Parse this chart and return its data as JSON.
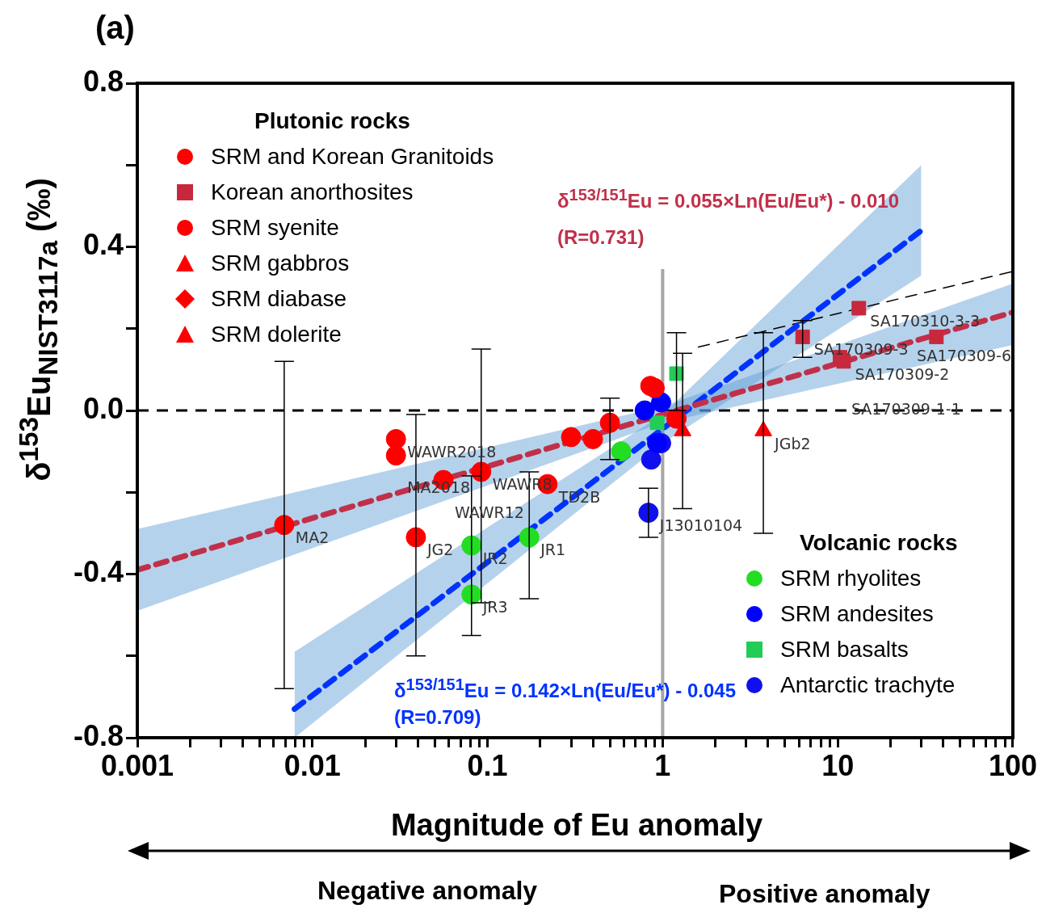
{
  "chart_data": {
    "type": "scatter",
    "title": "(a)",
    "xlabel": "Magnitude of Eu anomaly",
    "ylabel": "δ$^{153}$Eu$_{NIST3117a}$ (‰)",
    "legend_title": [
      "Plutonic rocks",
      "Volcanic rocks"
    ],
    "legend": [
      "top left",
      "bottom right"
    ],
    "log": "x",
    "grid": false,
    "xlim": [
      0.001,
      100
    ],
    "ylim": [
      -0.8,
      0.8
    ],
    "xticks": [
      0.001,
      {
        "value": 0.002,
        "label": null
      },
      {
        "value": 0.003,
        "label": null
      },
      {
        "value": 0.004,
        "label": null
      },
      {
        "value": 0.005,
        "label": null
      },
      {
        "value": 0.006,
        "label": null
      },
      {
        "value": 0.007,
        "label": null
      },
      {
        "value": 0.008,
        "label": null
      },
      {
        "value": 0.009,
        "label": null
      },
      0.01,
      {
        "value": 0.02,
        "label": null
      },
      {
        "value": 0.03,
        "label": null
      },
      {
        "value": 0.04,
        "label": null
      },
      {
        "value": 0.05,
        "label": null
      },
      {
        "value": 0.06,
        "label": null
      },
      {
        "value": 0.07,
        "label": null
      },
      {
        "value": 0.08,
        "label": null
      },
      {
        "value": 0.09,
        "label": null
      },
      0.1,
      {
        "value": 0.2,
        "label": null
      },
      {
        "value": 0.3,
        "label": null
      },
      {
        "value": 0.4,
        "label": null
      },
      {
        "value": 0.5,
        "label": null
      },
      {
        "value": 0.6,
        "label": null
      },
      {
        "value": 0.7,
        "label": null
      },
      {
        "value": 0.8,
        "label": null
      },
      {
        "value": 0.9,
        "label": null
      },
      1,
      {
        "value": 2,
        "label": null
      },
      {
        "value": 3,
        "label": null
      },
      {
        "value": 4,
        "label": null
      },
      {
        "value": 5,
        "label": null
      },
      {
        "value": 6,
        "label": null
      },
      {
        "value": 7,
        "label": null
      },
      {
        "value": 8,
        "label": null
      },
      {
        "value": 9,
        "label": null
      },
      10,
      {
        "value": 20,
        "label": null
      },
      {
        "value": 30,
        "label": null
      },
      {
        "value": 40,
        "label": null
      },
      {
        "value": 50,
        "label": null
      },
      {
        "value": 60,
        "label": null
      },
      {
        "value": 70,
        "label": null
      },
      {
        "value": 80,
        "label": null
      },
      {
        "value": 90,
        "label": null
      },
      100
    ],
    "yticks": [
      -0.8,
      {
        "value": -0.6,
        "label": null
      },
      -0.4,
      {
        "value": -0.2,
        "label": null
      },
      {
        "value": 0,
        "label": "0.0"
      },
      {
        "value": 0.2,
        "label": null
      },
      0.4,
      {
        "value": 0.6,
        "label": null
      },
      0.8
    ],
    "series": [
      {
        "name": "SRM and Korean Granitoids",
        "color": "#ff0000",
        "marker": "circle",
        "x": [
          0.0069,
          0.03,
          0.03,
          0.039,
          0.056,
          0.092,
          0.22,
          0.3,
          0.4,
          0.5,
          0.9,
          1.2
        ],
        "values": [
          -0.28,
          -0.07,
          -0.11,
          -0.31,
          -0.17,
          -0.15,
          -0.18,
          -0.065,
          -0.07,
          -0.03,
          0.055,
          -0.02
        ],
        "errors": [
          [
            -0.68,
            0.12
          ],
          null,
          null,
          [
            -0.6,
            -0.01
          ],
          null,
          [
            -0.47,
            0.15
          ],
          null,
          null,
          null,
          [
            -0.12,
            0.03
          ],
          null,
          null
        ]
      },
      {
        "name": "Korean anorthosites",
        "color": "#c8283c",
        "marker": "square",
        "x": [
          6.3,
          13.2,
          10.8,
          10.3,
          36.6
        ],
        "values": [
          0.18,
          0.25,
          0.12,
          0.13,
          0.18
        ],
        "errors": [
          [
            0.13,
            0.22
          ],
          null,
          null,
          null,
          null
        ]
      },
      {
        "name": "SRM syenite",
        "color": "#ff0000",
        "marker": "circle",
        "x": [
          0.85
        ],
        "values": [
          0.06
        ]
      },
      {
        "name": "SRM gabbros",
        "color": "#ff0000",
        "marker": "triangle",
        "x": [
          1.3,
          3.76
        ],
        "values": [
          -0.05,
          -0.05
        ],
        "errors": [
          [
            -0.24,
            0.14
          ],
          [
            -0.3,
            0.19
          ]
        ]
      },
      {
        "name": "SRM diabase",
        "color": "#ff0000",
        "marker": "diamond"
      },
      {
        "name": "SRM dolerite",
        "color": "#ff0000",
        "marker": "triangle"
      },
      {
        "name": "SRM rhyolites",
        "color": "#22dd22",
        "marker": "circle",
        "x": [
          0.081,
          0.081,
          0.173,
          0.58
        ],
        "values": [
          -0.33,
          -0.45,
          -0.31,
          -0.1
        ],
        "errors": [
          null,
          [
            -0.55,
            -0.16
          ],
          [
            -0.46,
            -0.15
          ],
          null
        ]
      },
      {
        "name": "SRM andesites",
        "color": "#0000ff",
        "marker": "circle",
        "x": [
          0.79,
          0.98,
          0.93
        ],
        "values": [
          0.0,
          0.02,
          -0.08
        ]
      },
      {
        "name": "SRM basalts",
        "color": "#22cc55",
        "marker": "square",
        "x": [
          1.2,
          0.93
        ],
        "values": [
          0.09,
          -0.03
        ],
        "errors": [
          [
            0.0,
            0.19
          ],
          null
        ]
      },
      {
        "name": "Antarctic trachyte",
        "color": "#1010ee",
        "marker": "circle",
        "x": [
          0.83,
          0.86,
          0.98
        ],
        "values": [
          -0.25,
          -0.12,
          -0.08
        ],
        "errors": [
          [
            -0.31,
            -0.19
          ],
          null,
          null
        ]
      },
      {
        "type": "line",
        "color": "#c0304a",
        "marker": "none",
        "line_style": "dashed",
        "x": [
          0.001,
          1,
          100
        ],
        "values": [
          -0.39,
          -0.01,
          0.24
        ],
        "lower": [
          -0.49,
          -0.03,
          0.16
        ],
        "upper": [
          -0.29,
          0.01,
          0.31
        ]
      },
      {
        "type": "line",
        "color": "#0033ff",
        "marker": "none",
        "line_style": "dashed",
        "x": [
          0.0079,
          1,
          30
        ],
        "values": [
          -0.73,
          -0.045,
          0.44
        ],
        "lower": [
          -0.8,
          -0.08,
          0.33
        ],
        "upper": [
          -0.59,
          -0.01,
          0.6
        ]
      },
      {
        "type": "line",
        "color": "#000000",
        "marker": "none",
        "line_style": "dashed",
        "x": [
          1.6,
          100
        ],
        "values": [
          0.155,
          0.34
        ]
      }
    ],
    "ref_lines": [
      {
        "axis": "y",
        "value": 0,
        "color": "#000000",
        "line_style": "dashed"
      },
      {
        "axis": "x",
        "value": 1,
        "color": "#a6a6a6",
        "line_style": "solid"
      }
    ],
    "annotations": [
      "δ$^{153/151}$Eu = 0.055×Ln(Eu/Eu*) - 0.010",
      "(R=0.731)",
      "δ$^{153/151}$Eu = 0.142×Ln(Eu/Eu*) - 0.045",
      "(R=0.709)",
      "Negative anomaly",
      "Positive anomaly",
      {
        "text": "MA2",
        "x": 0.0069,
        "y": -0.28
      },
      {
        "text": "WAWR2018",
        "x": 0.03,
        "y": -0.07
      },
      {
        "text": "MA2018",
        "x": 0.03,
        "y": -0.11
      },
      {
        "text": "JG2",
        "x": 0.039,
        "y": -0.31
      },
      {
        "text": "WAWR12",
        "x": 0.056,
        "y": -0.17
      },
      {
        "text": "WAWR8",
        "x": 0.092,
        "y": -0.15
      },
      {
        "text": "TD2B",
        "x": 0.22,
        "y": -0.18
      },
      {
        "text": "JR2",
        "x": 0.081,
        "y": -0.33
      },
      {
        "text": "JR3",
        "x": 0.081,
        "y": -0.45
      },
      {
        "text": "JR1",
        "x": 0.173,
        "y": -0.31
      },
      {
        "text": "J13010104",
        "x": 0.83,
        "y": -0.25
      },
      {
        "text": "JGb2",
        "x": 3.76,
        "y": -0.05
      },
      {
        "text": "SA170309-3",
        "x": 6.3,
        "y": 0.18
      },
      {
        "text": "SA170310-3-3",
        "x": 13.2,
        "y": 0.25
      },
      {
        "text": "SA170309-2",
        "x": 10.8,
        "y": 0.12
      },
      {
        "text": "SA170309-1-1",
        "x": 10.3,
        "y": 0.13
      },
      {
        "text": "SA170309-6",
        "x": 36.6,
        "y": 0.18
      }
    ]
  }
}
